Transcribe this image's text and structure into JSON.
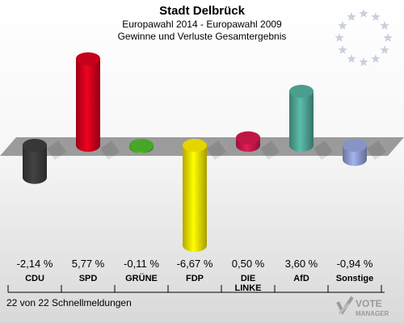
{
  "header": {
    "title": "Stadt Delbrück",
    "subtitle1": "Europawahl 2014 - Europawahl 2009",
    "subtitle2": "Gewinne und Verluste Gesamtergebnis"
  },
  "footer": {
    "text": "22 von 22 Schnellmeldungen"
  },
  "logo": {
    "line1": "VOTE",
    "line2": "MANAGER"
  },
  "chart_data": {
    "type": "bar",
    "title": "Stadt Delbrück",
    "categories": [
      "CDU",
      "SPD",
      "GRÜNE",
      "FDP",
      "DIE LINKE",
      "AfD",
      "Sonstige"
    ],
    "category_lines": [
      [
        "CDU"
      ],
      [
        "SPD"
      ],
      [
        "GRÜNE"
      ],
      [
        "FDP"
      ],
      [
        "DIE",
        "LINKE"
      ],
      [
        "AfD"
      ],
      [
        "Sonstige"
      ]
    ],
    "values": [
      -2.14,
      5.77,
      -0.11,
      -6.67,
      0.5,
      3.6,
      -0.94
    ],
    "value_labels": [
      "-2,14 %",
      "5,77 %",
      "-0,11 %",
      "-6,67 %",
      "0,50 %",
      "3,60 %",
      "-0,94 %"
    ],
    "colors": [
      "#3a3a3a",
      "#d0021b",
      "#4caf2a",
      "#f0e000",
      "#c8184a",
      "#4fa594",
      "#8e9ccf"
    ],
    "ylim": [
      -7,
      7
    ],
    "grid": false,
    "legend": "none"
  }
}
